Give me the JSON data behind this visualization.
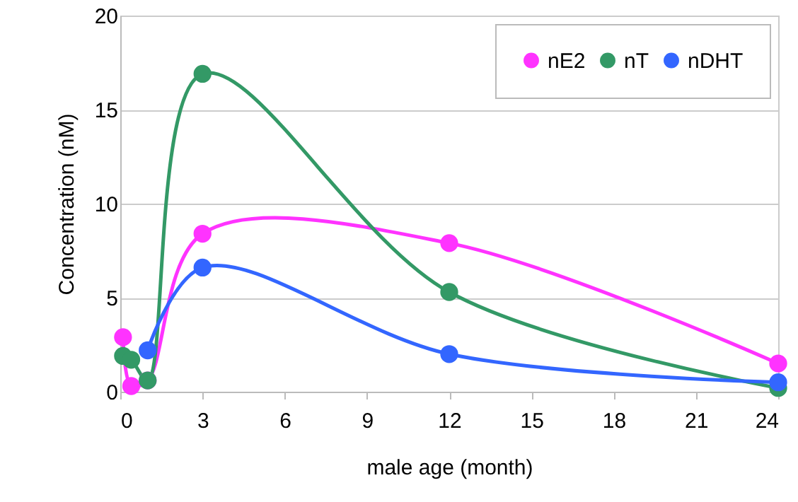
{
  "chart_data": {
    "type": "line",
    "xlabel": "male age (month)",
    "ylabel": "Concentration (nM)",
    "x": [
      0.1,
      0.4,
      1,
      3,
      12,
      24
    ],
    "series": [
      {
        "name": "nE2",
        "color": "#ff33ff",
        "values": [
          2.9,
          0.3,
          0.6,
          8.4,
          7.9,
          1.5
        ]
      },
      {
        "name": "nT",
        "color": "#339966",
        "values": [
          1.9,
          1.7,
          0.6,
          16.9,
          5.3,
          0.2
        ]
      },
      {
        "name": "nDHT",
        "color": "#3366ff",
        "values": [
          null,
          null,
          2.2,
          6.6,
          2.0,
          0.5
        ]
      }
    ],
    "xlim": [
      0,
      24
    ],
    "xticks": [
      0,
      3,
      6,
      9,
      12,
      15,
      18,
      21,
      24
    ],
    "ylim": [
      0,
      20
    ],
    "yticks": [
      0,
      5,
      10,
      15,
      20
    ],
    "grid": "y",
    "legend": "top right",
    "marker": "circle",
    "line_style": "solid"
  }
}
